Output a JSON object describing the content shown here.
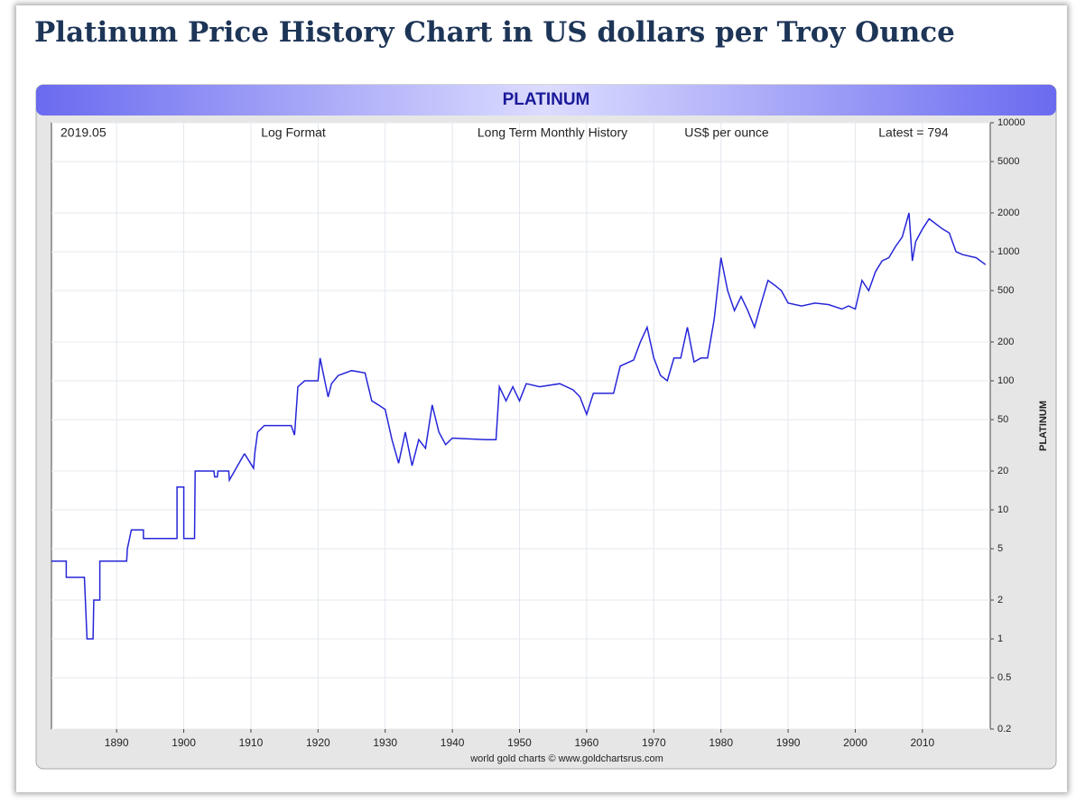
{
  "page_title": "Platinum Price History Chart in US dollars per Troy Ounce",
  "chart_data": {
    "type": "line",
    "title": "PLATINUM",
    "ylabel": "PLATINUM",
    "annotations": [
      "2019.05",
      "Log Format",
      "Long Term Monthly History",
      "US$ per ounce",
      "Latest = 794"
    ],
    "source": "world gold charts © www.goldchartsrus.com",
    "color": "#2626d9",
    "log_y": true,
    "grid": true,
    "xlim": [
      1880.3,
      2020.1
    ],
    "xticks": [
      1890,
      1900,
      1910,
      1920,
      1930,
      1940,
      1950,
      1960,
      1970,
      1980,
      1990,
      2000,
      2010
    ],
    "ylim": [
      0.2,
      10000
    ],
    "yticks": [
      0.2,
      0.5,
      1,
      2,
      5,
      10,
      20,
      50,
      100,
      200,
      500,
      1000,
      2000,
      5000,
      10000
    ],
    "x": [
      1880.3,
      1882.5,
      1882.5,
      1885.2,
      1885.6,
      1886.5,
      1886.6,
      1887.5,
      1887.5,
      1891.5,
      1891.6,
      1892.2,
      1894,
      1894,
      1899,
      1899,
      1900,
      1900,
      1901.6,
      1901.7,
      1904.5,
      1904.6,
      1905,
      1905.1,
      1906.7,
      1906.8,
      1909,
      1909.1,
      1910.4,
      1910.6,
      1911,
      1912,
      1916,
      1916.5,
      1917,
      1918,
      1920,
      1920.3,
      1921,
      1921.5,
      1922,
      1923,
      1925,
      1927,
      1928,
      1929,
      1930,
      1931,
      1932,
      1933,
      1934,
      1935,
      1936,
      1937,
      1938,
      1939,
      1940,
      1945,
      1946.5,
      1947,
      1948,
      1949,
      1950,
      1951,
      1953,
      1956,
      1958,
      1959,
      1960,
      1961,
      1964,
      1965,
      1967,
      1968,
      1969,
      1970,
      1971,
      1972,
      1973,
      1974,
      1975,
      1976,
      1977,
      1978,
      1979,
      1980,
      1981,
      1982,
      1983,
      1984,
      1985,
      1986,
      1987,
      1988,
      1989,
      1990,
      1992,
      1994,
      1996,
      1998,
      1999,
      2000,
      2001,
      2002,
      2003,
      2004,
      2005,
      2006,
      2007,
      2008,
      2008.5,
      2009,
      2010,
      2011,
      2013,
      2014,
      2015,
      2016,
      2018,
      2019.4
    ],
    "values": [
      4,
      4,
      3,
      3,
      1,
      1,
      2,
      2,
      4,
      4,
      5,
      7,
      7,
      6,
      6,
      15,
      15,
      6,
      6,
      20,
      20,
      18,
      18,
      20,
      20,
      17,
      27,
      27,
      21,
      28,
      40,
      45,
      45,
      38,
      90,
      100,
      100,
      150,
      100,
      75,
      95,
      110,
      120,
      115,
      70,
      65,
      60,
      35,
      23,
      40,
      22,
      35,
      30,
      65,
      40,
      32,
      36,
      35,
      35,
      90,
      70,
      90,
      70,
      95,
      90,
      95,
      85,
      75,
      55,
      80,
      80,
      130,
      145,
      200,
      260,
      150,
      110,
      100,
      150,
      150,
      260,
      140,
      150,
      150,
      300,
      900,
      500,
      350,
      450,
      350,
      260,
      400,
      600,
      550,
      500,
      400,
      380,
      400,
      390,
      360,
      380,
      360,
      600,
      500,
      700,
      850,
      900,
      1100,
      1300,
      2000,
      850,
      1200,
      1500,
      1800,
      1500,
      1400,
      1000,
      950,
      900,
      794
    ]
  }
}
